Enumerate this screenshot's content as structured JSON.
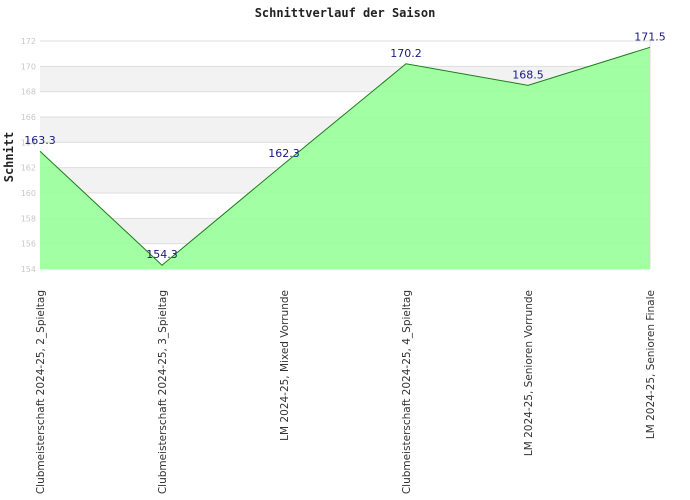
{
  "colors": {
    "area_fill": "#99ff99",
    "line": "#1c7d1c",
    "band": "#f2f2f2",
    "grid": "#dedede",
    "data_label": "#1a1a80"
  },
  "chart_data": {
    "type": "area",
    "title": "Schnittverlauf der Saison",
    "xlabel": "",
    "ylabel": "Schnitt",
    "ylim": [
      154,
      172
    ],
    "yticks": [
      154,
      156,
      158,
      160,
      162,
      164,
      166,
      168,
      170,
      172
    ],
    "grid": true,
    "legend": "none",
    "categories": [
      "Clubmeisterschaft 2024-25, 2_Spieltag",
      "Clubmeisterschaft 2024-25, 3_Spieltag",
      "LM 2024-25, Mixed Vorrunde",
      "Clubmeisterschaft 2024-25, 4_Spieltag",
      "LM 2024-25, Senioren Vorrunde",
      "LM 2024-25, Senioren Finale"
    ],
    "values": [
      163.3,
      154.3,
      162.3,
      170.2,
      168.5,
      171.5
    ],
    "data_labels": [
      "163.3",
      "154.3",
      "162.3",
      "170.2",
      "168.5",
      "171.5"
    ]
  }
}
